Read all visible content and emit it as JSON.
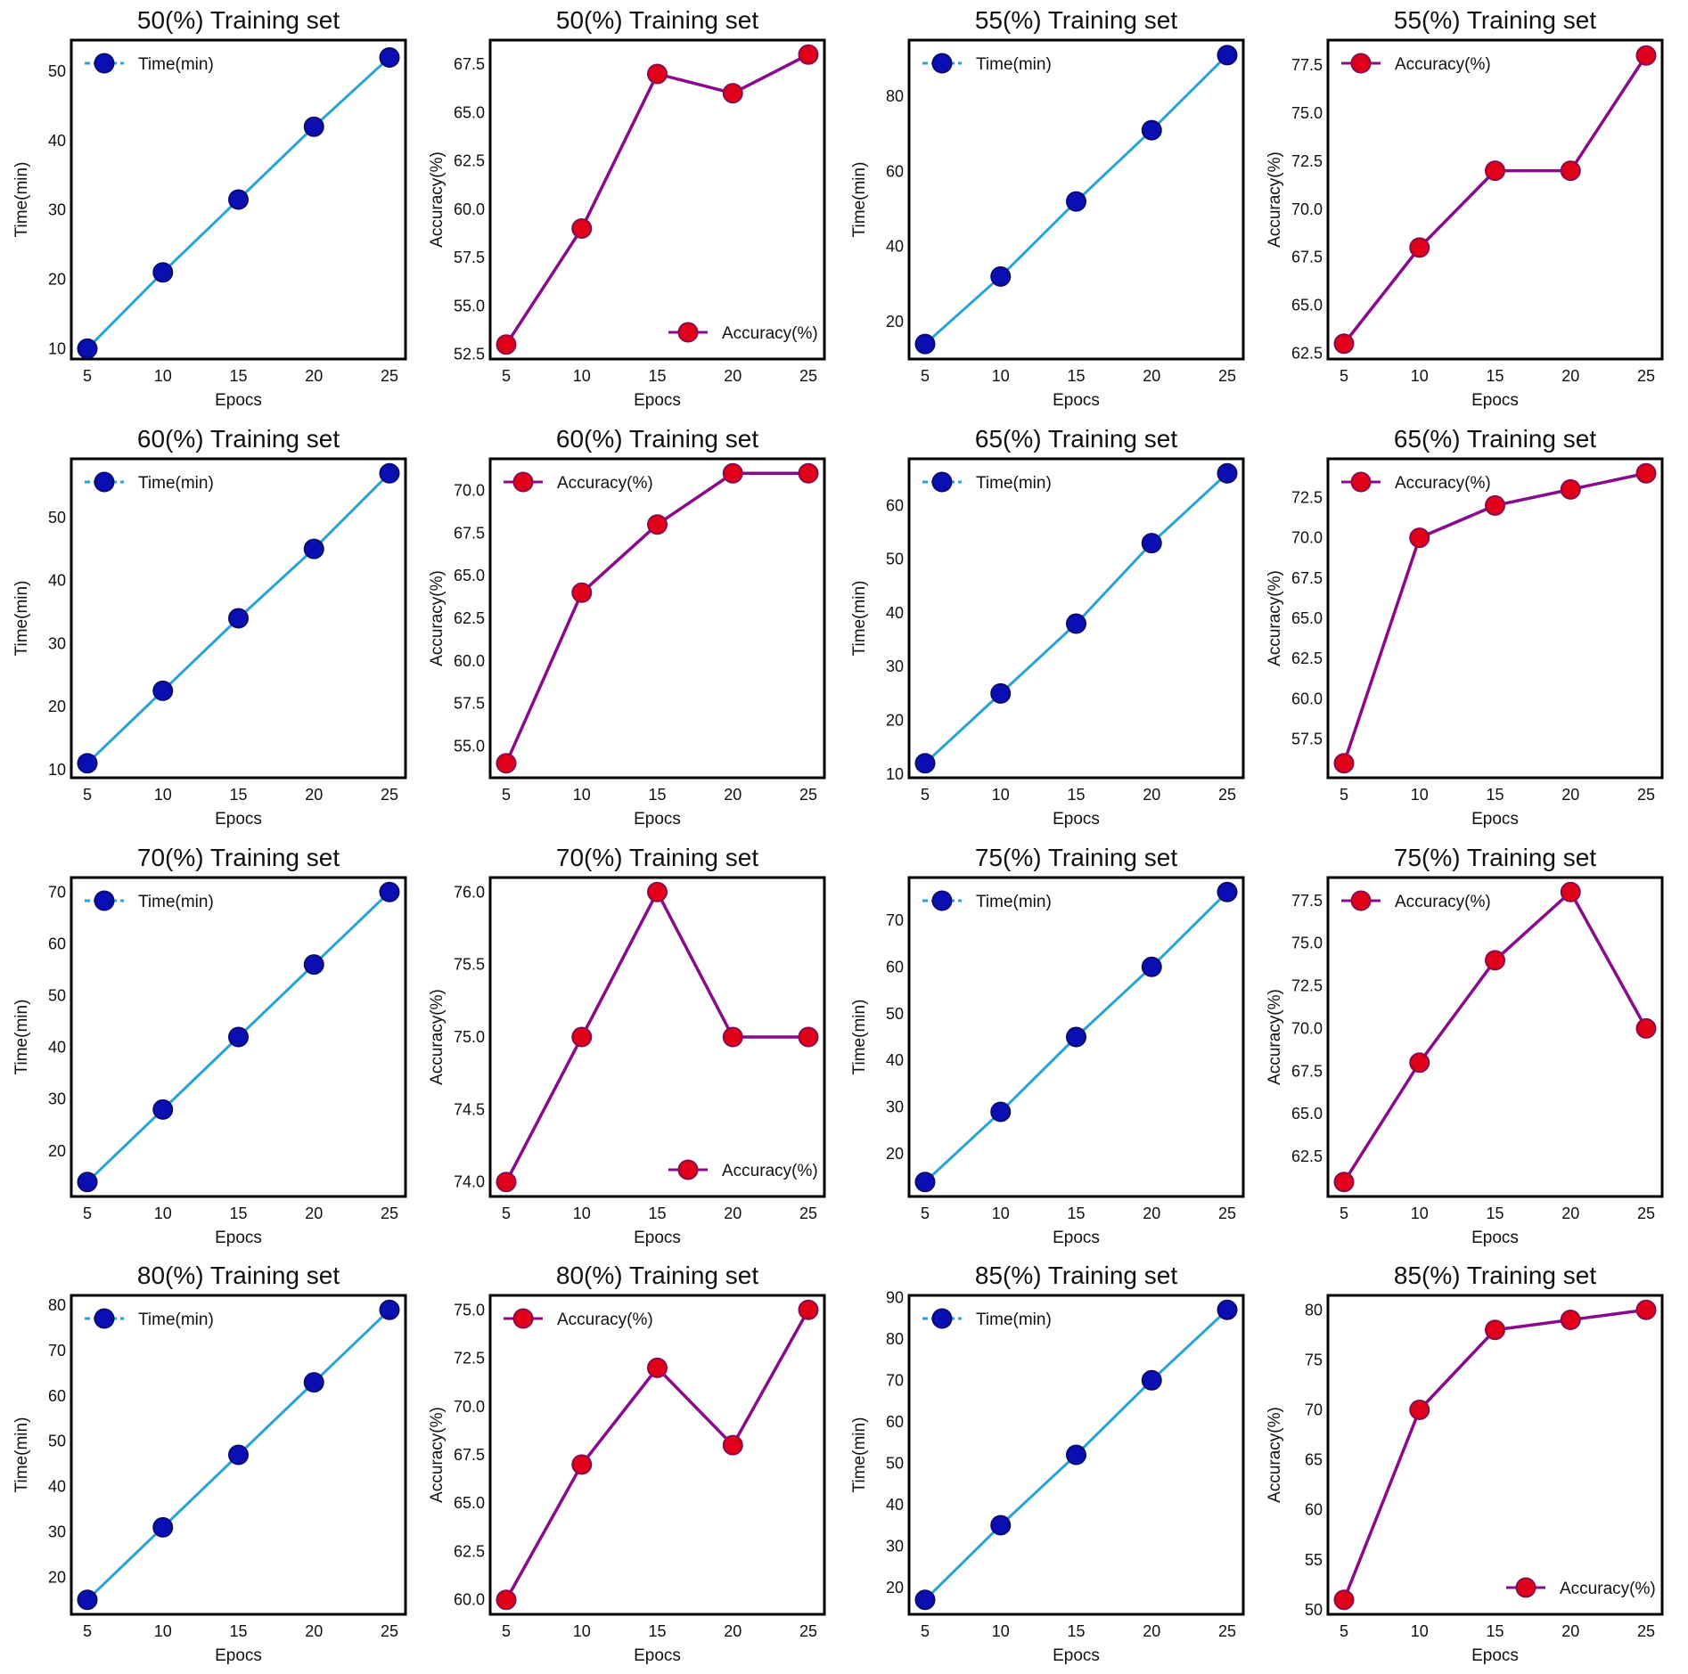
{
  "colors": {
    "time_line": "#29a3d6",
    "time_marker": "#0a0fb4",
    "time_marker_edge": "#0a0a6e",
    "acc_line": "#8a0a8c",
    "acc_marker": "#e0001a",
    "acc_marker_edge": "#8a0a4c"
  },
  "chart_data": [
    {
      "type": "line",
      "title": "50(%) Training set",
      "xlabel": "Epocs",
      "ylabel": "Time(min)",
      "legend": "Time(min)",
      "legend_loc": "upper-left",
      "series_kind": "time",
      "x": [
        5,
        10,
        15,
        20,
        25
      ],
      "values": [
        10,
        21,
        31.5,
        42,
        52
      ],
      "yticks": [
        10,
        20,
        30,
        40,
        50
      ],
      "ytick_labels": [
        "10",
        "20",
        "30",
        "40",
        "50"
      ],
      "ylim": [
        8.5,
        54.5
      ],
      "grid": false
    },
    {
      "type": "line",
      "title": "50(%) Training set",
      "xlabel": "Epocs",
      "ylabel": "Accuracy(%)",
      "legend": "Accuracy(%)",
      "legend_loc": "lower-right",
      "series_kind": "acc",
      "x": [
        5,
        10,
        15,
        20,
        25
      ],
      "values": [
        53,
        59,
        67,
        66,
        68
      ],
      "yticks": [
        52.5,
        55,
        57.5,
        60,
        62.5,
        65,
        67.5
      ],
      "ytick_labels": [
        "52.5",
        "55.0",
        "57.5",
        "60.0",
        "62.5",
        "65.0",
        "67.5"
      ],
      "ylim": [
        52.25,
        68.75
      ],
      "grid": false
    },
    {
      "type": "line",
      "title": "55(%) Training set",
      "xlabel": "Epocs",
      "ylabel": "Time(min)",
      "legend": "Time(min)",
      "legend_loc": "upper-left",
      "series_kind": "time",
      "x": [
        5,
        10,
        15,
        20,
        25
      ],
      "values": [
        14,
        32,
        52,
        71,
        91
      ],
      "yticks": [
        20,
        40,
        60,
        80
      ],
      "ytick_labels": [
        "20",
        "40",
        "60",
        "80"
      ],
      "ylim": [
        10,
        95
      ],
      "grid": false
    },
    {
      "type": "line",
      "title": "55(%) Training set",
      "xlabel": "Epocs",
      "ylabel": "Accuracy(%)",
      "legend": "Accuracy(%)",
      "legend_loc": "upper-left",
      "series_kind": "acc",
      "x": [
        5,
        10,
        15,
        20,
        25
      ],
      "values": [
        63,
        68,
        72,
        72,
        78
      ],
      "yticks": [
        62.5,
        65,
        67.5,
        70,
        72.5,
        75,
        77.5
      ],
      "ytick_labels": [
        "62.5",
        "65.0",
        "67.5",
        "70.0",
        "72.5",
        "75.0",
        "77.5"
      ],
      "ylim": [
        62.2,
        78.8
      ],
      "grid": false
    },
    {
      "type": "line",
      "title": "60(%) Training set",
      "xlabel": "Epocs",
      "ylabel": "Time(min)",
      "legend": "Time(min)",
      "legend_loc": "upper-left",
      "series_kind": "time",
      "x": [
        5,
        10,
        15,
        20,
        25
      ],
      "values": [
        11,
        22.5,
        34,
        45,
        57
      ],
      "yticks": [
        10,
        20,
        30,
        40,
        50
      ],
      "ytick_labels": [
        "10",
        "20",
        "30",
        "40",
        "50"
      ],
      "ylim": [
        8.7,
        59.3
      ],
      "grid": false
    },
    {
      "type": "line",
      "title": "60(%) Training set",
      "xlabel": "Epocs",
      "ylabel": "Accuracy(%)",
      "legend": "Accuracy(%)",
      "legend_loc": "upper-left",
      "series_kind": "acc",
      "x": [
        5,
        10,
        15,
        20,
        25
      ],
      "values": [
        54,
        64,
        68,
        71,
        71
      ],
      "yticks": [
        55,
        57.5,
        60,
        62.5,
        65,
        67.5,
        70
      ],
      "ytick_labels": [
        "55.0",
        "57.5",
        "60.0",
        "62.5",
        "65.0",
        "67.5",
        "70.0"
      ],
      "ylim": [
        53.15,
        71.85
      ],
      "grid": false
    },
    {
      "type": "line",
      "title": "65(%) Training set",
      "xlabel": "Epocs",
      "ylabel": "Time(min)",
      "legend": "Time(min)",
      "legend_loc": "upper-left",
      "series_kind": "time",
      "x": [
        5,
        10,
        15,
        20,
        25
      ],
      "values": [
        12,
        25,
        38,
        53,
        66
      ],
      "yticks": [
        10,
        20,
        30,
        40,
        50,
        60
      ],
      "ytick_labels": [
        "10",
        "20",
        "30",
        "40",
        "50",
        "60"
      ],
      "ylim": [
        9.3,
        68.7
      ],
      "grid": false
    },
    {
      "type": "line",
      "title": "65(%) Training set",
      "xlabel": "Epocs",
      "ylabel": "Accuracy(%)",
      "legend": "Accuracy(%)",
      "legend_loc": "upper-left",
      "series_kind": "acc",
      "x": [
        5,
        10,
        15,
        20,
        25
      ],
      "values": [
        56,
        70,
        72,
        73,
        74
      ],
      "yticks": [
        57.5,
        60,
        62.5,
        65,
        67.5,
        70,
        72.5
      ],
      "ytick_labels": [
        "57.5",
        "60.0",
        "62.5",
        "65.0",
        "67.5",
        "70.0",
        "72.5"
      ],
      "ylim": [
        55.1,
        74.9
      ],
      "grid": false
    },
    {
      "type": "line",
      "title": "70(%) Training set",
      "xlabel": "Epocs",
      "ylabel": "Time(min)",
      "legend": "Time(min)",
      "legend_loc": "upper-left",
      "series_kind": "time",
      "x": [
        5,
        10,
        15,
        20,
        25
      ],
      "values": [
        14,
        28,
        42,
        56,
        70
      ],
      "yticks": [
        20,
        30,
        40,
        50,
        60,
        70
      ],
      "ytick_labels": [
        "20",
        "30",
        "40",
        "50",
        "60",
        "70"
      ],
      "ylim": [
        11.2,
        72.8
      ],
      "grid": false
    },
    {
      "type": "line",
      "title": "70(%) Training set",
      "xlabel": "Epocs",
      "ylabel": "Accuracy(%)",
      "legend": "Accuracy(%)",
      "legend_loc": "lower-right",
      "series_kind": "acc",
      "x": [
        5,
        10,
        15,
        20,
        25
      ],
      "values": [
        74,
        75,
        76,
        75,
        75
      ],
      "yticks": [
        74,
        74.5,
        75,
        75.5,
        76
      ],
      "ytick_labels": [
        "74.0",
        "74.5",
        "75.0",
        "75.5",
        "76.0"
      ],
      "ylim": [
        73.9,
        76.1
      ],
      "grid": false
    },
    {
      "type": "line",
      "title": "75(%) Training set",
      "xlabel": "Epocs",
      "ylabel": "Time(min)",
      "legend": "Time(min)",
      "legend_loc": "upper-left",
      "series_kind": "time",
      "x": [
        5,
        10,
        15,
        20,
        25
      ],
      "values": [
        14,
        29,
        45,
        60,
        76
      ],
      "yticks": [
        20,
        30,
        40,
        50,
        60,
        70
      ],
      "ytick_labels": [
        "20",
        "30",
        "40",
        "50",
        "60",
        "70"
      ],
      "ylim": [
        10.9,
        79.1
      ],
      "grid": false
    },
    {
      "type": "line",
      "title": "75(%) Training set",
      "xlabel": "Epocs",
      "ylabel": "Accuracy(%)",
      "legend": "Accuracy(%)",
      "legend_loc": "upper-left",
      "series_kind": "acc",
      "x": [
        5,
        10,
        15,
        20,
        25
      ],
      "values": [
        61,
        68,
        74,
        78,
        70
      ],
      "yticks": [
        62.5,
        65,
        67.5,
        70,
        72.5,
        75,
        77.5
      ],
      "ytick_labels": [
        "62.5",
        "65.0",
        "67.5",
        "70.0",
        "72.5",
        "75.0",
        "77.5"
      ],
      "ylim": [
        60.15,
        78.85
      ],
      "grid": false
    },
    {
      "type": "line",
      "title": "80(%) Training set",
      "xlabel": "Epocs",
      "ylabel": "Time(min)",
      "legend": "Time(min)",
      "legend_loc": "upper-left",
      "series_kind": "time",
      "x": [
        5,
        10,
        15,
        20,
        25
      ],
      "values": [
        15,
        31,
        47,
        63,
        79
      ],
      "yticks": [
        20,
        30,
        40,
        50,
        60,
        70,
        80
      ],
      "ytick_labels": [
        "20",
        "30",
        "40",
        "50",
        "60",
        "70",
        "80"
      ],
      "ylim": [
        11.8,
        82.2
      ],
      "grid": false
    },
    {
      "type": "line",
      "title": "80(%) Training set",
      "xlabel": "Epocs",
      "ylabel": "Accuracy(%)",
      "legend": "Accuracy(%)",
      "legend_loc": "upper-left",
      "series_kind": "acc",
      "x": [
        5,
        10,
        15,
        20,
        25
      ],
      "values": [
        60,
        67,
        72,
        68,
        75
      ],
      "yticks": [
        60,
        62.5,
        65,
        67.5,
        70,
        72.5,
        75
      ],
      "ytick_labels": [
        "60.0",
        "62.5",
        "65.0",
        "67.5",
        "70.0",
        "72.5",
        "75.0"
      ],
      "ylim": [
        59.25,
        75.75
      ],
      "grid": false
    },
    {
      "type": "line",
      "title": "85(%) Training set",
      "xlabel": "Epocs",
      "ylabel": "Time(min)",
      "legend": "Time(min)",
      "legend_loc": "upper-left",
      "series_kind": "time",
      "x": [
        5,
        10,
        15,
        20,
        25
      ],
      "values": [
        17,
        35,
        52,
        70,
        87
      ],
      "yticks": [
        20,
        30,
        40,
        50,
        60,
        70,
        80,
        90
      ],
      "ytick_labels": [
        "20",
        "30",
        "40",
        "50",
        "60",
        "70",
        "80",
        "90"
      ],
      "ylim": [
        13.5,
        90.5
      ],
      "grid": false
    },
    {
      "type": "line",
      "title": "85(%) Training set",
      "xlabel": "Epocs",
      "ylabel": "Accuracy(%)",
      "legend": "Accuracy(%)",
      "legend_loc": "lower-right",
      "series_kind": "acc",
      "x": [
        5,
        10,
        15,
        20,
        25
      ],
      "values": [
        51,
        70,
        78,
        79,
        80
      ],
      "yticks": [
        50,
        55,
        60,
        65,
        70,
        75,
        80
      ],
      "ytick_labels": [
        "50",
        "55",
        "60",
        "65",
        "70",
        "75",
        "80"
      ],
      "ylim": [
        49.55,
        81.45
      ],
      "grid": false
    }
  ]
}
